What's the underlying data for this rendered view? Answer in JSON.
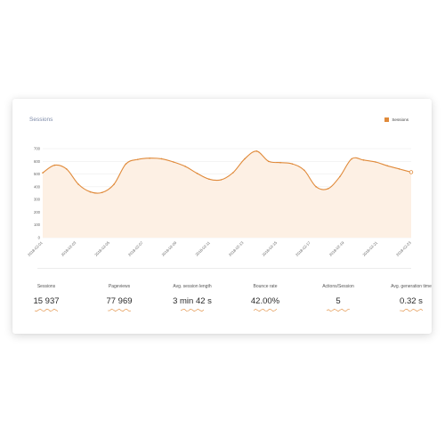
{
  "card": {
    "title": "Sessions"
  },
  "chart_data": {
    "type": "area",
    "title": "Sessions",
    "legend": {
      "position": "top-right",
      "entries": [
        "Sessions"
      ]
    },
    "series": [
      {
        "name": "Sessions",
        "color": "#e08a3a",
        "fill": "#fdf0e4",
        "values": [
          510,
          570,
          540,
          420,
          360,
          355,
          420,
          580,
          615,
          625,
          620,
          595,
          560,
          505,
          460,
          455,
          510,
          620,
          680,
          600,
          590,
          580,
          530,
          400,
          385,
          480,
          620,
          610,
          595,
          565,
          540,
          515
        ]
      }
    ],
    "x_tick_labels": [
      "2018-02-01",
      "2018-02-03",
      "2018-02-05",
      "2018-02-07",
      "2018-02-09",
      "2018-02-11",
      "2018-02-13",
      "2018-02-15",
      "2018-02-17",
      "2018-02-19",
      "2018-02-21",
      "2018-02-23"
    ],
    "y_ticks": [
      0,
      100,
      200,
      300,
      400,
      500,
      600,
      700
    ],
    "ylim": [
      0,
      700
    ],
    "grid": true
  },
  "kpis": [
    {
      "label": "Sessions",
      "value": "15 937"
    },
    {
      "label": "Pageviews",
      "value": "77 969"
    },
    {
      "label": "Avg. session length",
      "value": "3 min 42 s"
    },
    {
      "label": "Bounce rate",
      "value": "42.00%"
    },
    {
      "label": "Actions/Session",
      "value": "5"
    },
    {
      "label": "Avg. generation time",
      "value": "0.32 s"
    }
  ],
  "colors": {
    "accent": "#e08a3a",
    "area": "#fdf0e4"
  }
}
